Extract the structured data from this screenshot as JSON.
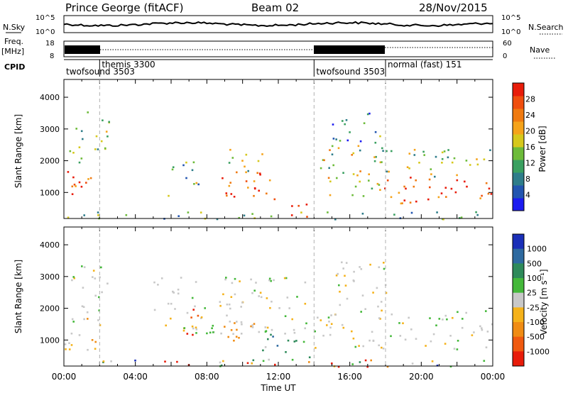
{
  "header": {
    "title": "Prince George (fitACF)",
    "beam": "Beam 02",
    "date": "28/Nov/2015"
  },
  "nsky_panel": {
    "label": "N.Sky",
    "right_label": "N.Search",
    "ticks_left": [
      "10^5",
      "10^0"
    ],
    "ticks_right": [
      "10^5",
      "10^0"
    ]
  },
  "freq_panel": {
    "label_line1": "Freq.",
    "label_line2": "[MHz]",
    "ticks_left": [
      "18",
      "8"
    ],
    "ticks_right": [
      "60",
      "0"
    ],
    "right_label": "Nave"
  },
  "cpid_panel": {
    "label": "CPID",
    "modes": [
      {
        "text": "twofsound 3503",
        "start_hour": 0.0,
        "row": "lower"
      },
      {
        "text": "themis 3300",
        "start_hour": 2.0,
        "row": "upper"
      },
      {
        "text": "twofsound 3503",
        "start_hour": 14.0,
        "row": "lower"
      },
      {
        "text": "normal (fast) 151",
        "start_hour": 18.0,
        "row": "upper"
      }
    ]
  },
  "chart_data": [
    {
      "type": "heatmap",
      "name": "power",
      "xlabel": "Time UT",
      "ylabel": "Slant Range [km]",
      "xlim_hours": [
        0,
        24
      ],
      "xticks": [
        "00:00",
        "04:00",
        "08:00",
        "12:00",
        "16:00",
        "20:00",
        "00:00"
      ],
      "ylim": [
        180,
        4560
      ],
      "yticks": [
        1000,
        2000,
        3000,
        4000
      ],
      "mode_change_lines_hours": [
        2,
        14,
        18
      ],
      "colorbar": {
        "label": "Power [dB]",
        "ticks": [
          4,
          8,
          12,
          16,
          20,
          24,
          28
        ],
        "colors": [
          "#1b1bf0",
          "#2255b0",
          "#2e7d8a",
          "#3aa060",
          "#6dbb3a",
          "#d6c81c",
          "#f5a31a",
          "#f07a10",
          "#f04e0e",
          "#e81c0a"
        ]
      },
      "echo_regions": [
        {
          "t0": 0.0,
          "t1": 1.9,
          "r0": 700,
          "r1": 1800,
          "level": 0.85
        },
        {
          "t0": 0.2,
          "t1": 2.5,
          "r0": 1900,
          "r1": 3600,
          "level": 0.45
        },
        {
          "t0": 5.8,
          "t1": 7.5,
          "r0": 800,
          "r1": 2000,
          "level": 0.4
        },
        {
          "t0": 8.8,
          "t1": 12.6,
          "r0": 800,
          "r1": 1700,
          "level": 0.9
        },
        {
          "t0": 9.2,
          "t1": 11.2,
          "r0": 1700,
          "r1": 2400,
          "level": 0.5
        },
        {
          "t0": 12.6,
          "t1": 14.2,
          "r0": 250,
          "r1": 700,
          "level": 0.95
        },
        {
          "t0": 14.0,
          "t1": 17.8,
          "r0": 900,
          "r1": 2600,
          "level": 0.5
        },
        {
          "t0": 15.0,
          "t1": 18.0,
          "r0": 2600,
          "r1": 3800,
          "level": 0.3
        },
        {
          "t0": 17.8,
          "t1": 24.0,
          "r0": 650,
          "r1": 1500,
          "level": 0.88
        },
        {
          "t0": 17.8,
          "t1": 24.0,
          "r0": 1500,
          "r1": 2400,
          "level": 0.45
        },
        {
          "t0": 0.0,
          "t1": 24.0,
          "r0": 180,
          "r1": 420,
          "level": 0.35
        }
      ]
    },
    {
      "type": "heatmap",
      "name": "velocity",
      "xlabel": "Time UT",
      "ylabel": "Slant Range [km]",
      "xlim_hours": [
        0,
        24
      ],
      "xticks": [
        "00:00",
        "04:00",
        "08:00",
        "12:00",
        "16:00",
        "20:00",
        "00:00"
      ],
      "ylim": [
        180,
        4560
      ],
      "yticks": [
        1000,
        2000,
        3000,
        4000
      ],
      "mode_change_lines_hours": [
        2,
        14,
        18
      ],
      "colorbar": {
        "label": "Velocity [m s^-1]",
        "ticks": [
          "1000",
          "500",
          "100",
          "25",
          "-25",
          "-100",
          "-500",
          "-1000"
        ],
        "colors": [
          "#1a2fb8",
          "#2e6aa0",
          "#2e8a5a",
          "#44b83a",
          "#c8c8c8",
          "#f5b21a",
          "#f08c14",
          "#f05a10",
          "#e81c0a"
        ]
      },
      "echo_regions": [
        {
          "t0": 0.0,
          "t1": 2.0,
          "r0": 700,
          "r1": 1800,
          "v": "gray"
        },
        {
          "t0": 1.0,
          "t1": 2.0,
          "r0": 900,
          "r1": 1700,
          "v": "orange"
        },
        {
          "t0": 0.2,
          "t1": 2.4,
          "r0": 1900,
          "r1": 3500,
          "v": "gray"
        },
        {
          "t0": 6.8,
          "t1": 7.6,
          "r0": 900,
          "r1": 2000,
          "v": "red"
        },
        {
          "t0": 8.8,
          "t1": 10.8,
          "r0": 900,
          "r1": 1700,
          "v": "orange"
        },
        {
          "t0": 10.8,
          "t1": 13.5,
          "r0": 700,
          "r1": 1500,
          "v": "green"
        },
        {
          "t0": 11.5,
          "t1": 12.6,
          "r0": 800,
          "r1": 1200,
          "v": "blue"
        },
        {
          "t0": 11.0,
          "t1": 14.0,
          "r0": 300,
          "r1": 700,
          "v": "green"
        },
        {
          "t0": 5.0,
          "t1": 14.0,
          "r0": 1200,
          "r1": 3000,
          "v": "gray"
        },
        {
          "t0": 14.0,
          "t1": 24.0,
          "r0": 700,
          "r1": 2000,
          "v": "gray"
        },
        {
          "t0": 15.0,
          "t1": 18.0,
          "r0": 2000,
          "r1": 3500,
          "v": "gray"
        },
        {
          "t0": 0.0,
          "t1": 24.0,
          "r0": 180,
          "r1": 400,
          "v": "mixed"
        }
      ]
    }
  ]
}
